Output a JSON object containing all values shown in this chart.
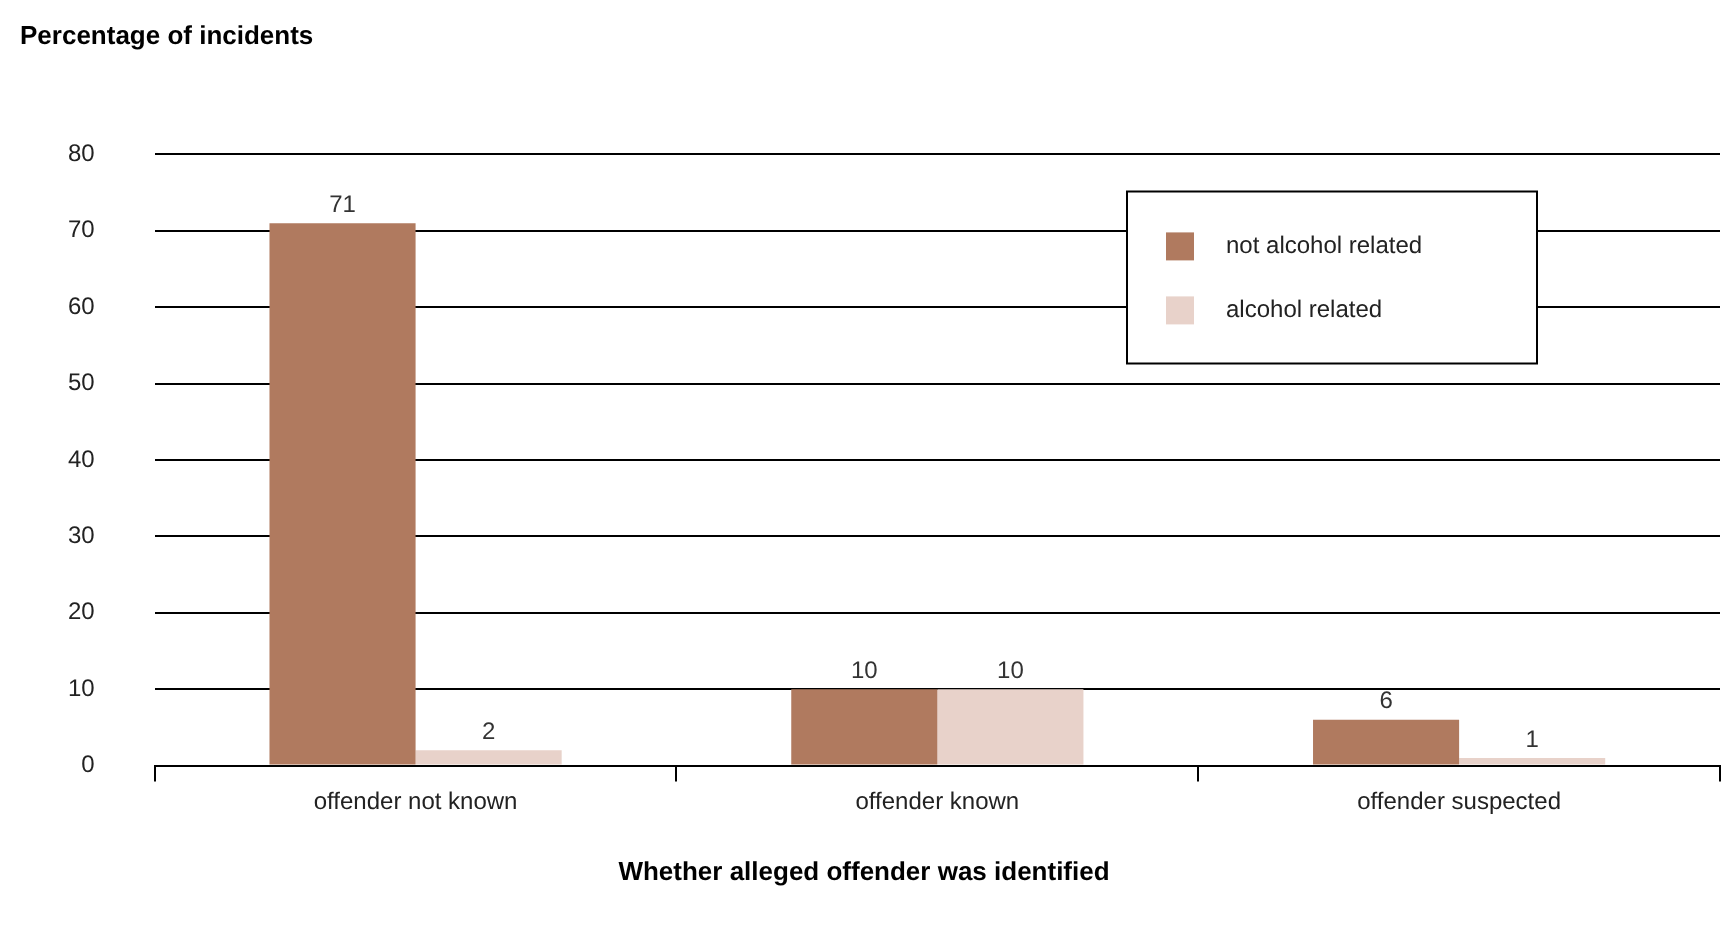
{
  "chart_data": {
    "type": "bar",
    "title": "Percentage of incidents",
    "xlabel": "Whether alleged offender was identified",
    "categories": [
      "offender not known",
      "offender known",
      "offender suspected"
    ],
    "series": [
      {
        "name": "not alcohol related",
        "color": "#b07a5f",
        "values": [
          71,
          10,
          6
        ]
      },
      {
        "name": "alcohol related",
        "color": "#e8d2ca",
        "values": [
          2,
          10,
          1
        ]
      }
    ],
    "ylim": [
      0,
      80
    ],
    "yticks": [
      0,
      10,
      20,
      30,
      40,
      50,
      60,
      70,
      80
    ],
    "grid": "y",
    "legend": "top right",
    "data_labels": true
  }
}
